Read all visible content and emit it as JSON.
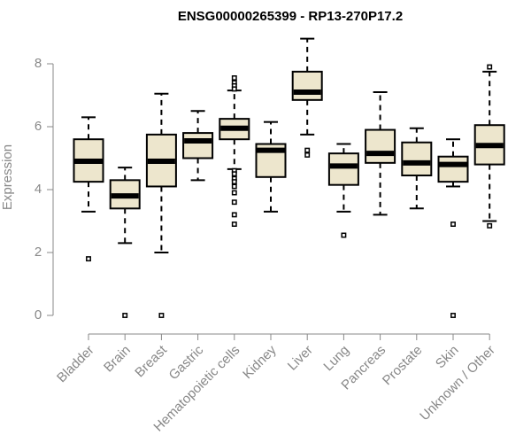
{
  "chart_data": {
    "type": "boxplot",
    "title": "ENSG00000265399 - RP13-270P17.2",
    "ylabel": "Expression",
    "xlabel": "",
    "ylim": [
      0,
      8.5
    ],
    "yticks": [
      0,
      2,
      4,
      6,
      8
    ],
    "colors": {
      "box_fill": "#ede6cd",
      "stroke": "#000000",
      "axis": "#888888"
    },
    "categories": [
      "Bladder",
      "Brain",
      "Breast",
      "Gastric",
      "Hematopoietic cells",
      "Kidney",
      "Liver",
      "Lung",
      "Pancreas",
      "Prostate",
      "Skin",
      "Unknown / Other"
    ],
    "boxes": [
      {
        "name": "Bladder",
        "min": 3.3,
        "q1": 4.25,
        "median": 4.9,
        "q3": 5.6,
        "max": 6.3,
        "outliers": [
          1.8
        ]
      },
      {
        "name": "Brain",
        "min": 2.3,
        "q1": 3.4,
        "median": 3.8,
        "q3": 4.3,
        "max": 4.7,
        "outliers": [
          0.0
        ]
      },
      {
        "name": "Breast",
        "min": 2.0,
        "q1": 4.1,
        "median": 4.9,
        "q3": 5.75,
        "max": 7.05,
        "outliers": [
          0.0
        ]
      },
      {
        "name": "Gastric",
        "min": 4.3,
        "q1": 5.0,
        "median": 5.55,
        "q3": 5.8,
        "max": 6.5,
        "outliers": []
      },
      {
        "name": "Hematopoietic cells",
        "min": 4.65,
        "q1": 5.6,
        "median": 5.95,
        "q3": 6.25,
        "max": 7.15,
        "outliers": [
          7.55,
          7.4,
          7.3,
          7.2,
          4.6,
          4.5,
          4.35,
          4.25,
          4.1,
          3.9,
          3.6,
          3.2,
          2.9
        ]
      },
      {
        "name": "Kidney",
        "min": 3.3,
        "q1": 4.4,
        "median": 5.25,
        "q3": 5.45,
        "max": 6.15,
        "outliers": []
      },
      {
        "name": "Liver",
        "min": 5.75,
        "q1": 6.85,
        "median": 7.1,
        "q3": 7.75,
        "max": 8.8,
        "outliers": [
          5.25,
          5.1
        ]
      },
      {
        "name": "Lung",
        "min": 3.3,
        "q1": 4.15,
        "median": 4.75,
        "q3": 5.15,
        "max": 5.45,
        "outliers": [
          2.55
        ]
      },
      {
        "name": "Pancreas",
        "min": 3.2,
        "q1": 4.85,
        "median": 5.15,
        "q3": 5.9,
        "max": 7.1,
        "outliers": []
      },
      {
        "name": "Prostate",
        "min": 3.4,
        "q1": 4.45,
        "median": 4.85,
        "q3": 5.5,
        "max": 5.95,
        "outliers": []
      },
      {
        "name": "Skin",
        "min": 4.1,
        "q1": 4.25,
        "median": 4.8,
        "q3": 5.05,
        "max": 5.6,
        "outliers": [
          2.9,
          0.0
        ]
      },
      {
        "name": "Unknown / Other",
        "min": 3.0,
        "q1": 4.8,
        "median": 5.4,
        "q3": 6.05,
        "max": 7.75,
        "outliers": [
          7.9,
          2.85
        ]
      }
    ]
  }
}
